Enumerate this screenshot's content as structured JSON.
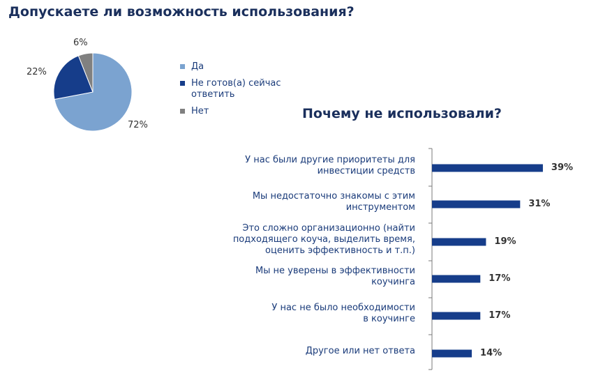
{
  "chart_data": [
    {
      "type": "pie",
      "title": "Допускаете ли возможность использования?",
      "slices": [
        {
          "label": "Да",
          "value": 72,
          "value_label": "72%",
          "color": "#7ba3d0"
        },
        {
          "label": "Не готов(а) сейчас ответить",
          "value": 22,
          "value_label": "22%",
          "color": "#163d8a"
        },
        {
          "label": "Нет",
          "value": 6,
          "value_label": "6%",
          "color": "#808080"
        }
      ],
      "legend_position": "right"
    },
    {
      "type": "bar",
      "orientation": "horizontal",
      "title": "Почему не использовали?",
      "bar_color": "#163d8a",
      "xlim": [
        0,
        40
      ],
      "categories": [
        [
          "У нас были другие приоритеты для",
          "инвестиции средств"
        ],
        [
          "Мы недостаточно знакомы с этим",
          "инструментом"
        ],
        [
          "Это сложно организационно (найти",
          "подходящего коуча, выделить время,",
          "оценить эффективность и т.п.)"
        ],
        [
          "Мы не уверены в эффективности",
          "коучинга"
        ],
        [
          "У нас не было необходимости",
          "в коучинге"
        ],
        [
          "Другое или нет ответа"
        ]
      ],
      "values": [
        39,
        31,
        19,
        17,
        17,
        14
      ],
      "value_labels": [
        "39%",
        "31%",
        "19%",
        "17%",
        "17%",
        "14%"
      ]
    }
  ]
}
